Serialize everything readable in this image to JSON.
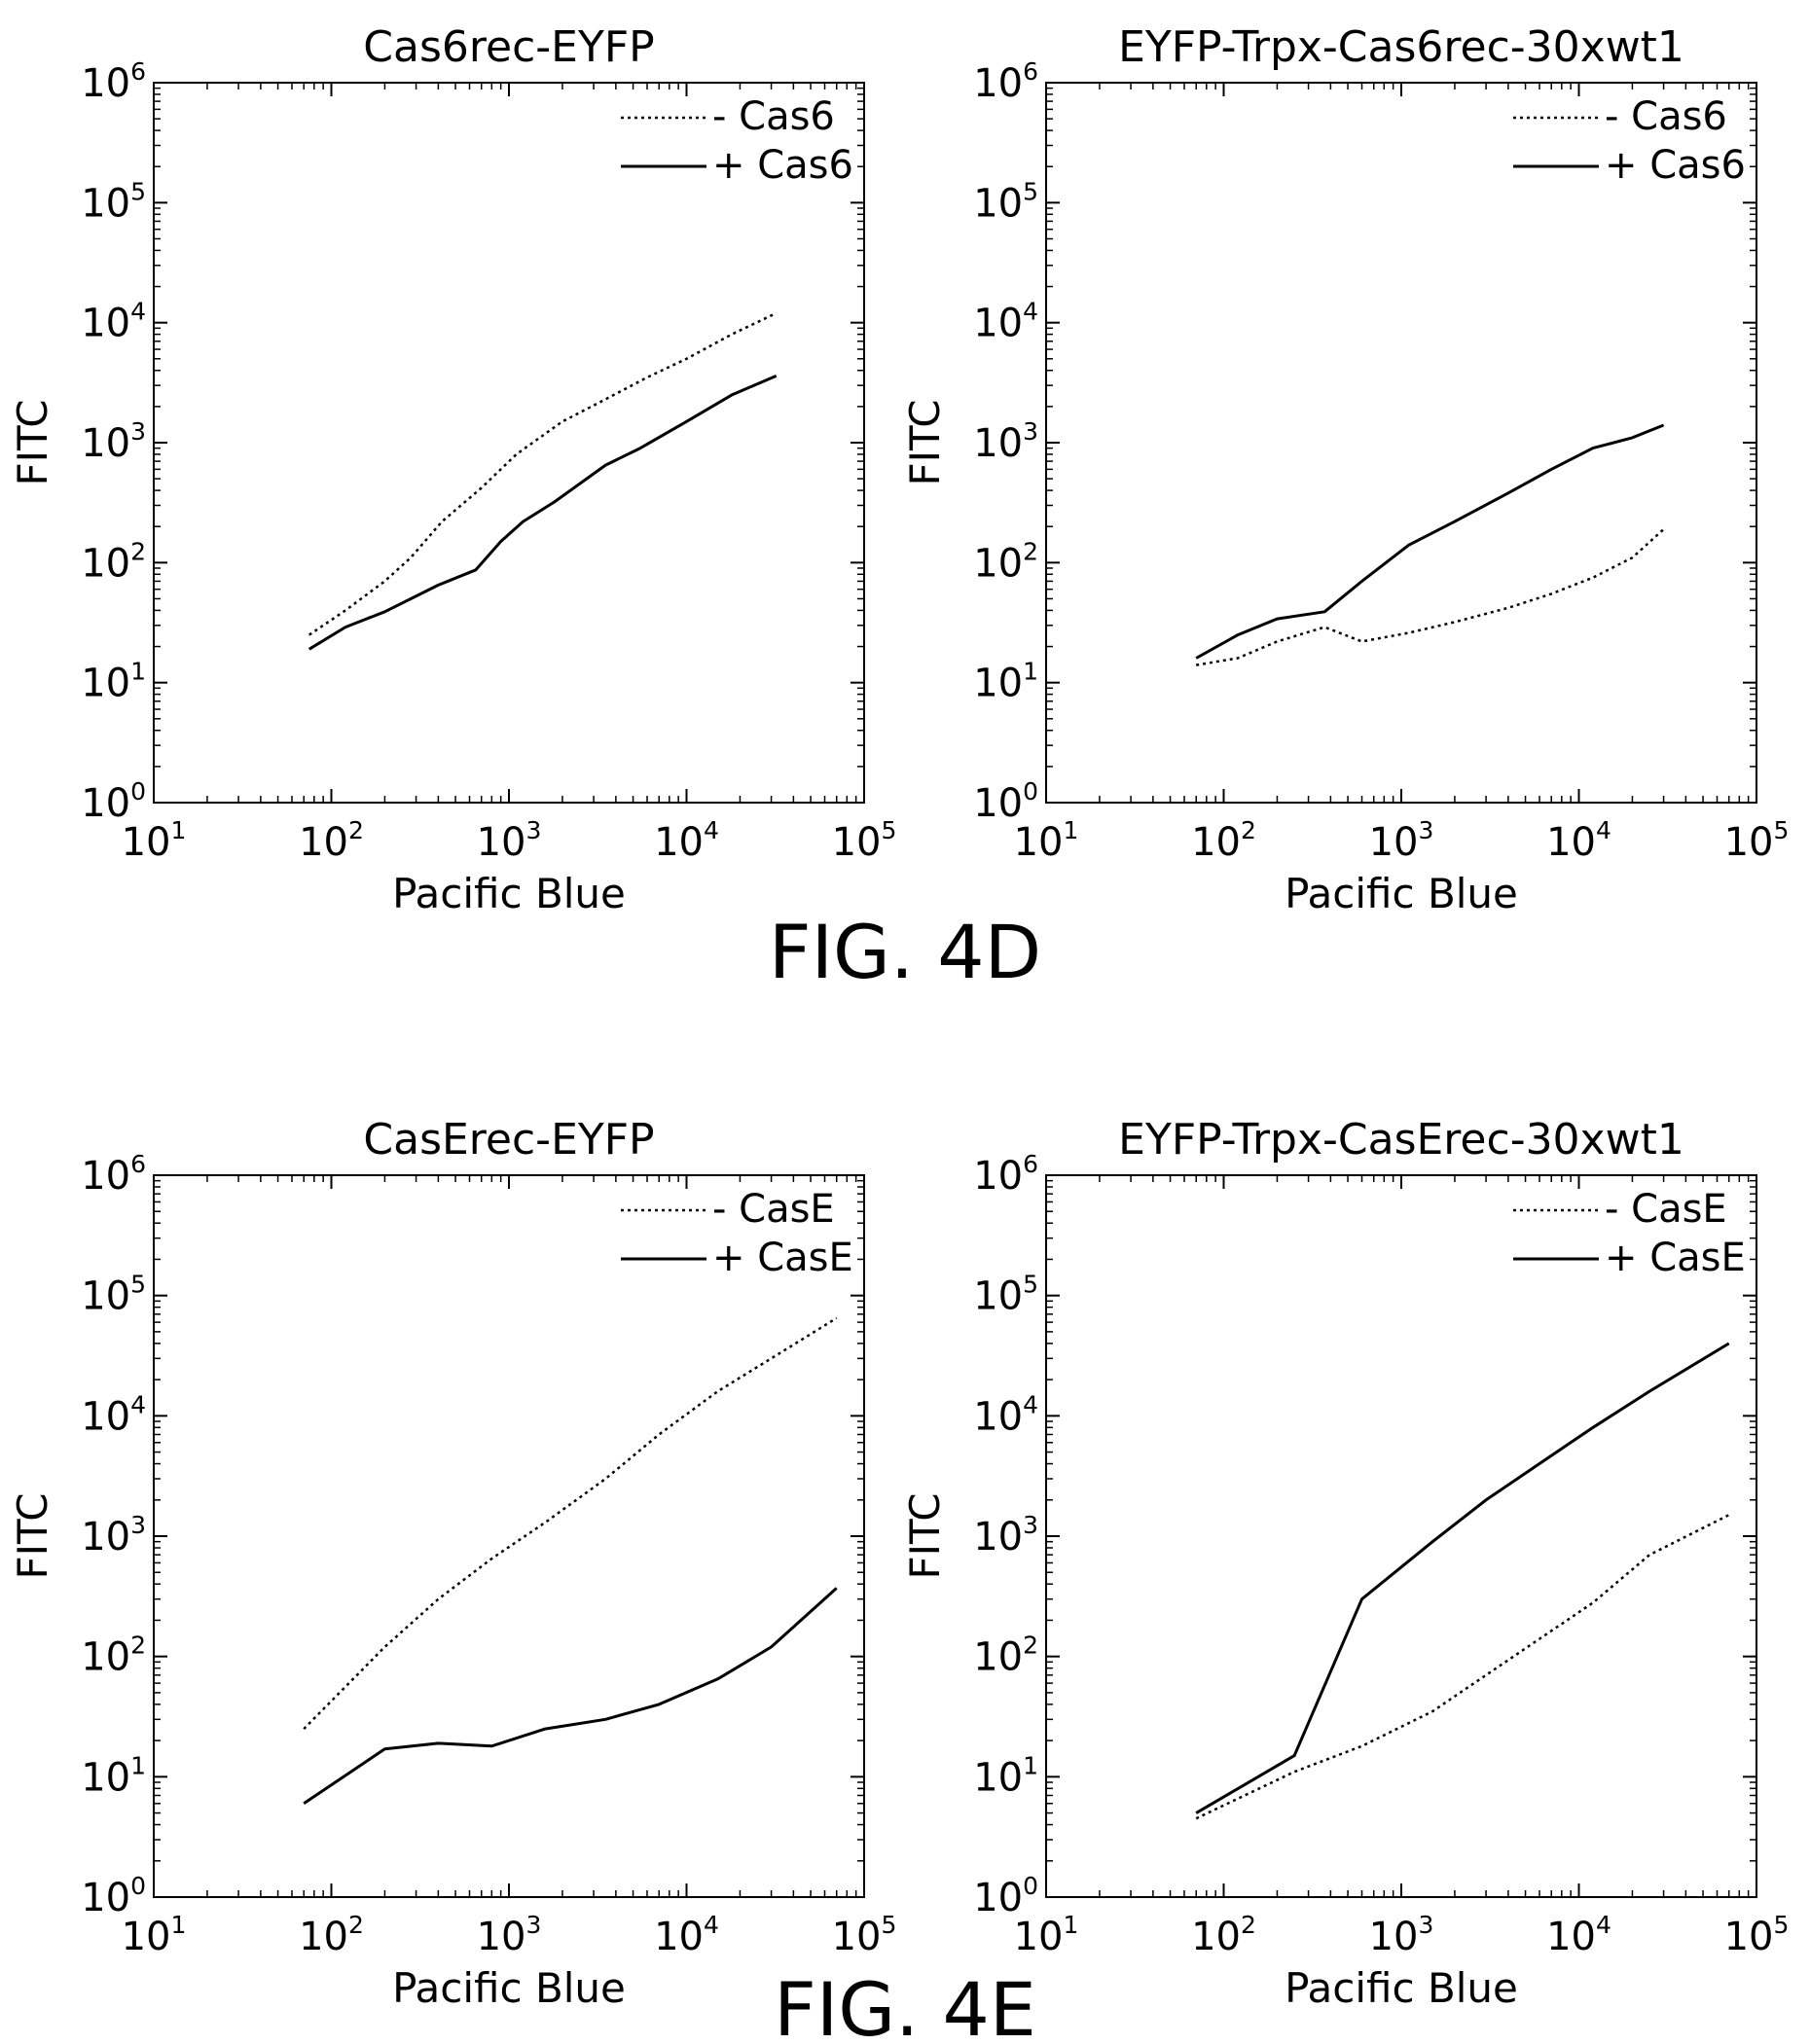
{
  "figures": [
    {
      "caption": "FIG. 4D"
    },
    {
      "caption": "FIG. 4E"
    }
  ],
  "axis_tick_base": "10",
  "chart_data": [
    {
      "type": "line",
      "title": "Cas6rec-EYFP",
      "xlabel": "Pacific Blue",
      "ylabel": "FITC",
      "xscale": "log",
      "yscale": "log",
      "xlim": [
        10,
        100000
      ],
      "ylim": [
        1,
        1000000
      ],
      "x_ticks": [
        10,
        100,
        1000,
        10000,
        100000
      ],
      "x_tick_exponents": [
        "1",
        "2",
        "3",
        "4",
        "5"
      ],
      "y_ticks": [
        1,
        10,
        100,
        1000,
        10000,
        100000,
        1000000
      ],
      "y_tick_exponents": [
        "0",
        "1",
        "2",
        "3",
        "4",
        "5",
        "6"
      ],
      "legend_position": "top-right",
      "series": [
        {
          "name": "- Cas6",
          "style": "dotted",
          "x": [
            75,
            120,
            200,
            280,
            420,
            700,
            1100,
            2000,
            3500,
            6000,
            10000,
            18000,
            32000
          ],
          "y": [
            25,
            40,
            70,
            110,
            220,
            420,
            800,
            1500,
            2300,
            3500,
            5000,
            8000,
            12000
          ]
        },
        {
          "name": "+ Cas6",
          "style": "solid",
          "x": [
            75,
            120,
            200,
            400,
            650,
            900,
            1200,
            1800,
            3500,
            5500,
            10000,
            18000,
            32000
          ],
          "y": [
            19,
            29,
            39,
            65,
            87,
            150,
            220,
            320,
            650,
            900,
            1500,
            2500,
            3600
          ]
        }
      ]
    },
    {
      "type": "line",
      "title": "EYFP-Trpx-Cas6rec-30xwt1",
      "xlabel": "Pacific Blue",
      "ylabel": "FITC",
      "xscale": "log",
      "yscale": "log",
      "xlim": [
        10,
        100000
      ],
      "ylim": [
        1,
        1000000
      ],
      "x_ticks": [
        10,
        100,
        1000,
        10000,
        100000
      ],
      "x_tick_exponents": [
        "1",
        "2",
        "3",
        "4",
        "5"
      ],
      "y_ticks": [
        1,
        10,
        100,
        1000,
        10000,
        100000,
        1000000
      ],
      "y_tick_exponents": [
        "0",
        "1",
        "2",
        "3",
        "4",
        "5",
        "6"
      ],
      "legend_position": "top-right",
      "series": [
        {
          "name": "- Cas6",
          "style": "dotted",
          "x": [
            70,
            120,
            200,
            370,
            600,
            1100,
            2000,
            4000,
            7000,
            12000,
            20000,
            30000
          ],
          "y": [
            14,
            16,
            22,
            29,
            22,
            26,
            32,
            42,
            55,
            75,
            110,
            190
          ]
        },
        {
          "name": "+ Cas6",
          "style": "solid",
          "x": [
            70,
            120,
            200,
            370,
            600,
            1100,
            2000,
            4000,
            7000,
            12000,
            20000,
            30000
          ],
          "y": [
            16,
            25,
            34,
            39,
            70,
            140,
            220,
            380,
            600,
            900,
            1100,
            1400
          ]
        }
      ]
    },
    {
      "type": "line",
      "title": "CasErec-EYFP",
      "xlabel": "Pacific Blue",
      "ylabel": "FITC",
      "xscale": "log",
      "yscale": "log",
      "xlim": [
        10,
        100000
      ],
      "ylim": [
        1,
        1000000
      ],
      "x_ticks": [
        10,
        100,
        1000,
        10000,
        100000
      ],
      "x_tick_exponents": [
        "1",
        "2",
        "3",
        "4",
        "5"
      ],
      "y_ticks": [
        1,
        10,
        100,
        1000,
        10000,
        100000,
        1000000
      ],
      "y_tick_exponents": [
        "0",
        "1",
        "2",
        "3",
        "4",
        "5",
        "6"
      ],
      "legend_position": "top-right",
      "series": [
        {
          "name": "- CasE",
          "style": "dotted",
          "x": [
            70,
            200,
            400,
            800,
            1600,
            3500,
            7000,
            15000,
            30000,
            70000
          ],
          "y": [
            25,
            120,
            300,
            650,
            1300,
            3000,
            7000,
            16000,
            30000,
            65000
          ]
        },
        {
          "name": "+ CasE",
          "style": "solid",
          "x": [
            70,
            200,
            400,
            800,
            1600,
            3500,
            7000,
            15000,
            30000,
            70000
          ],
          "y": [
            6,
            17,
            19,
            18,
            25,
            30,
            40,
            65,
            120,
            370
          ]
        }
      ]
    },
    {
      "type": "line",
      "title": "EYFP-Trpx-CasErec-30xwt1",
      "xlabel": "Pacific Blue",
      "ylabel": "FITC",
      "xscale": "log",
      "yscale": "log",
      "xlim": [
        10,
        100000
      ],
      "ylim": [
        1,
        1000000
      ],
      "x_ticks": [
        10,
        100,
        1000,
        10000,
        100000
      ],
      "x_tick_exponents": [
        "1",
        "2",
        "3",
        "4",
        "5"
      ],
      "y_ticks": [
        1,
        10,
        100,
        1000,
        10000,
        100000,
        1000000
      ],
      "y_tick_exponents": [
        "0",
        "1",
        "2",
        "3",
        "4",
        "5",
        "6"
      ],
      "legend_position": "top-right",
      "series": [
        {
          "name": "- CasE",
          "style": "dotted",
          "x": [
            70,
            250,
            600,
            1500,
            3000,
            6000,
            12000,
            25000,
            70000
          ],
          "y": [
            4.5,
            11,
            18,
            35,
            70,
            140,
            280,
            700,
            1500
          ]
        },
        {
          "name": "+ CasE",
          "style": "solid",
          "x": [
            70,
            250,
            600,
            1500,
            3000,
            6000,
            12000,
            25000,
            70000
          ],
          "y": [
            5,
            15,
            300,
            900,
            2000,
            4000,
            8000,
            16000,
            40000
          ]
        }
      ]
    }
  ]
}
